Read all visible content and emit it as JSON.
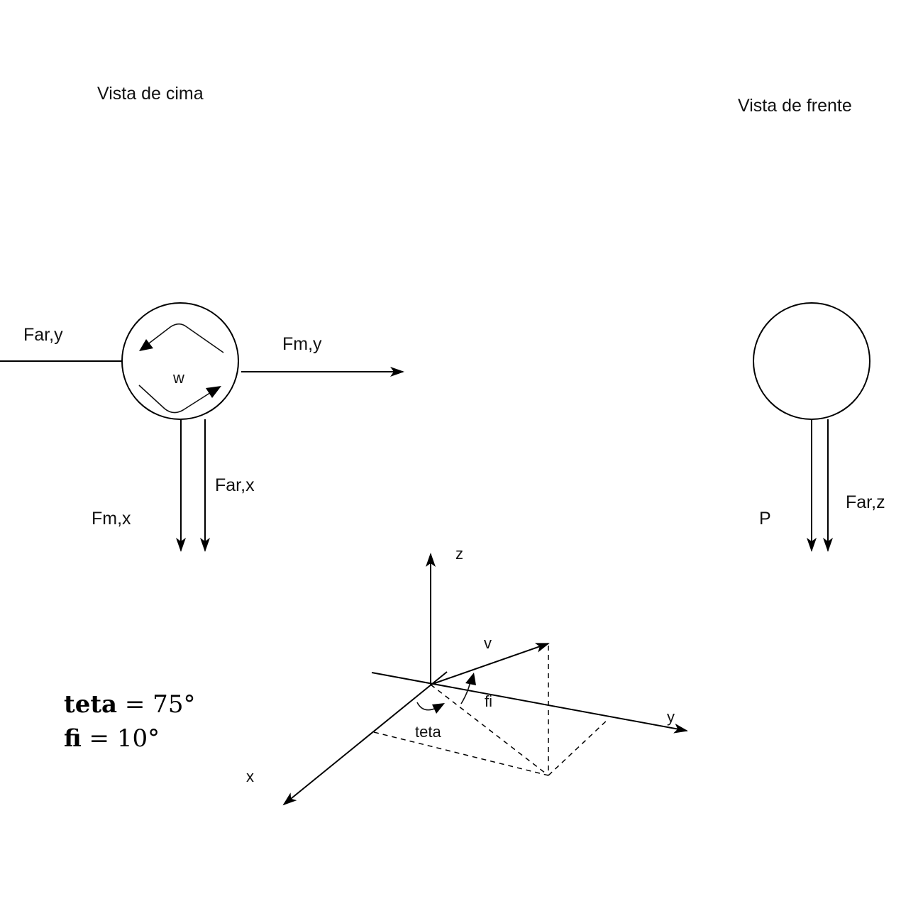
{
  "labels": {
    "top_view_title": "Vista de cima",
    "front_view_title": "Vista de frente",
    "far_y": "Far,y",
    "fm_y": "Fm,y",
    "w": "w",
    "far_x": "Far,x",
    "fm_x": "Fm,x",
    "p": "P",
    "far_z": "Far,z",
    "axis_z": "z",
    "axis_y": "y",
    "axis_x": "x",
    "v": "v",
    "fi": "fi",
    "teta": "teta"
  },
  "formulas": {
    "teta_name": "teta",
    "teta_value": " = 75°",
    "fi_name": "fi",
    "fi_value": " = 10°"
  }
}
